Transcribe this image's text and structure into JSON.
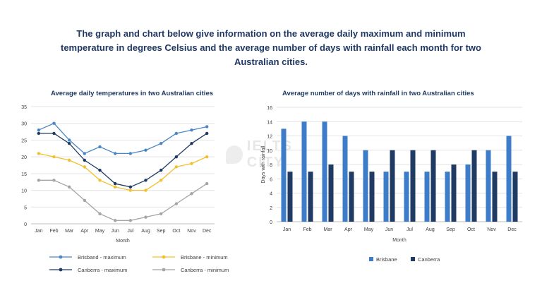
{
  "heading": "The graph and chart below give information on the average daily maximum and minimum temperature in degrees Celsius and the average number of days with rainfall each month for two Australian cities.",
  "watermark": {
    "text": "IELTS CITY"
  },
  "chart_data": [
    {
      "type": "line",
      "title": "Average daily temperatures in two Australian cities",
      "xlabel": "Month",
      "ylabel": "",
      "categories": [
        "Jan",
        "Feb",
        "Mar",
        "Apr",
        "May",
        "Jun",
        "Jul",
        "Aug",
        "Sep",
        "Oct",
        "Nov",
        "Dec"
      ],
      "ylim": [
        0,
        35
      ],
      "yticks": [
        0,
        5,
        10,
        15,
        20,
        25,
        30,
        35
      ],
      "grid": true,
      "legend_position": "bottom",
      "series": [
        {
          "name": "Brisband - maximum",
          "color": "#4a86c6",
          "values": [
            28,
            30,
            25,
            21,
            23,
            21,
            21,
            22,
            24,
            27,
            28,
            29
          ]
        },
        {
          "name": "Brisbane - minimum",
          "color": "#f2c02f",
          "values": [
            21,
            20,
            19,
            17,
            13,
            11,
            10,
            10,
            13,
            17,
            18,
            20
          ]
        },
        {
          "name": "Canberra - maximum",
          "color": "#1f3a63",
          "values": [
            27,
            27,
            24,
            19,
            16,
            12,
            11,
            13,
            16,
            20,
            24,
            27
          ]
        },
        {
          "name": "Canberra - minimum",
          "color": "#a5a5a5",
          "values": [
            13,
            13,
            11,
            7,
            3,
            1,
            1,
            2,
            3,
            6,
            9,
            12
          ]
        }
      ]
    },
    {
      "type": "bar",
      "title": "Average number of days with rainfall in two Australian cities",
      "xlabel": "Month",
      "ylabel": "Days with rainfall",
      "categories": [
        "Jan",
        "Feb",
        "Mar",
        "Apr",
        "May",
        "Jun",
        "Jul",
        "Aug",
        "Sep",
        "Oct",
        "Nov",
        "Dec"
      ],
      "ylim": [
        0,
        16
      ],
      "yticks": [
        0,
        2,
        4,
        6,
        8,
        10,
        12,
        14,
        16
      ],
      "grid": true,
      "legend_position": "bottom",
      "series": [
        {
          "name": "Brisbane",
          "color": "#3d7cc9",
          "values": [
            13,
            14,
            14,
            12,
            10,
            7,
            7,
            7,
            7,
            8,
            10,
            12
          ]
        },
        {
          "name": "Canberra",
          "color": "#1f3a63",
          "values": [
            7,
            7,
            8,
            7,
            7,
            10,
            10,
            10,
            8,
            10,
            7,
            7
          ]
        }
      ]
    }
  ]
}
